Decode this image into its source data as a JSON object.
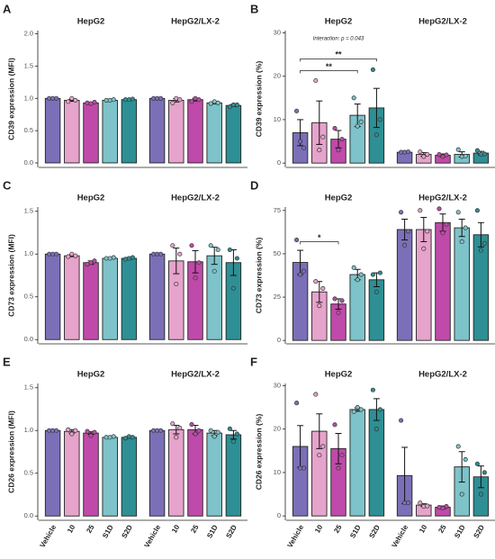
{
  "chart_data": [
    {
      "panel": "A",
      "type": "bar",
      "ylabel": "CD39 expression (MFI)",
      "ylim": [
        -0.07,
        2.05
      ],
      "yticks": [
        {
          "value": 0,
          "label": "0.0"
        },
        {
          "value": 0.5,
          "label": "0.5"
        },
        {
          "value": 1,
          "label": "1.0"
        },
        {
          "value": 1.5,
          "label": "1.5"
        },
        {
          "value": 2,
          "label": "2.0"
        }
      ],
      "colors": [
        "#7b70b8",
        "#e6a3cb",
        "#c04aa9",
        "#7dc3c9",
        "#2e8f94"
      ],
      "facets": [
        {
          "title": "HepG2",
          "values": [
            1.0,
            0.97,
            0.93,
            0.97,
            0.98
          ],
          "errors": [
            0.005,
            0.015,
            0.01,
            0.005,
            0.005
          ],
          "points": [
            [
              1.0,
              1.0,
              1.0
            ],
            [
              0.95,
              1.0,
              0.97
            ],
            [
              0.93,
              0.92,
              0.94
            ],
            [
              0.97,
              0.97,
              0.98
            ],
            [
              0.98,
              0.98,
              0.99
            ]
          ]
        },
        {
          "title": "HepG2/LX-2",
          "values": [
            1.0,
            0.97,
            0.98,
            0.93,
            0.89
          ],
          "errors": [
            0.005,
            0.025,
            0.02,
            0.015,
            0.015
          ],
          "points": [
            [
              1.0,
              1.0,
              1.0
            ],
            [
              0.93,
              1.0,
              0.98
            ],
            [
              0.95,
              1.0,
              0.98
            ],
            [
              0.92,
              0.95,
              0.93
            ],
            [
              0.87,
              0.9,
              0.9
            ]
          ]
        }
      ]
    },
    {
      "panel": "B",
      "type": "bar",
      "ylabel": "CD39 expression (%)",
      "ylim": [
        -1,
        30.5
      ],
      "yticks": [
        0,
        10,
        20,
        30
      ],
      "colors": [
        "#7b70b8",
        "#e6a3cb",
        "#c04aa9",
        "#7dc3c9",
        "#2e8f94"
      ],
      "note": "Interaction: p = 0.043",
      "annotations": [
        {
          "text": "**",
          "from": 0,
          "to": 4,
          "y": 24
        },
        {
          "text": "**",
          "from": 0,
          "to": 3,
          "y": 21.3
        }
      ],
      "facets": [
        {
          "title": "HepG2",
          "values": [
            7,
            9.3,
            5.5,
            11,
            12.7
          ],
          "errors": [
            3,
            5,
            2,
            2.6,
            4.5
          ],
          "points": [
            [
              12,
              5,
              3.5
            ],
            [
              19,
              3,
              6
            ],
            [
              8,
              3,
              5.5
            ],
            [
              15,
              8.5,
              9.5
            ],
            [
              21.5,
              6.5,
              10
            ]
          ]
        },
        {
          "title": "HepG2/LX-2",
          "values": [
            2.5,
            2,
            1.8,
            2,
            2.3
          ],
          "errors": [
            0.2,
            0.4,
            0.3,
            0.6,
            0.4
          ],
          "points": [
            [
              2.5,
              2.5,
              2.6
            ],
            [
              2.6,
              1.5,
              2
            ],
            [
              2,
              1.5,
              1.9
            ],
            [
              3.1,
              1.5,
              1.6
            ],
            [
              2.9,
              2,
              2.1
            ]
          ]
        }
      ]
    },
    {
      "panel": "C",
      "type": "bar",
      "ylabel": "CD73 expression (MFI)",
      "ylim": [
        -0.05,
        1.55
      ],
      "yticks": [
        {
          "value": 0,
          "label": "0.0"
        },
        {
          "value": 0.5,
          "label": "0.5"
        },
        {
          "value": 1,
          "label": "1.0"
        },
        {
          "value": 1.5,
          "label": "1.5"
        }
      ],
      "colors": [
        "#7b70b8",
        "#e6a3cb",
        "#c04aa9",
        "#7dc3c9",
        "#2e8f94"
      ],
      "facets": [
        {
          "title": "HepG2",
          "values": [
            1.0,
            0.98,
            0.9,
            0.95,
            0.95
          ],
          "errors": [
            0.005,
            0.01,
            0.02,
            0.005,
            0.01
          ],
          "points": [
            [
              1,
              1,
              1
            ],
            [
              0.97,
              1,
              0.98
            ],
            [
              0.88,
              0.9,
              0.92
            ],
            [
              0.95,
              0.95,
              0.96
            ],
            [
              0.94,
              0.95,
              0.96
            ]
          ]
        },
        {
          "title": "HepG2/LX-2",
          "values": [
            1.0,
            0.92,
            0.91,
            0.98,
            0.9
          ],
          "errors": [
            0.005,
            0.15,
            0.13,
            0.1,
            0.15
          ],
          "points": [
            [
              1,
              1,
              1
            ],
            [
              1.1,
              0.65,
              1.0
            ],
            [
              1.1,
              0.72,
              0.9
            ],
            [
              1.1,
              0.8,
              1.05
            ],
            [
              1.05,
              0.6,
              0.95
            ]
          ]
        }
      ]
    },
    {
      "panel": "D",
      "type": "bar",
      "ylabel": "CD73 expression (%)",
      "ylim": [
        -2,
        77
      ],
      "yticks": [
        0,
        25,
        50,
        75
      ],
      "colors": [
        "#7b70b8",
        "#e6a3cb",
        "#c04aa9",
        "#7dc3c9",
        "#2e8f94"
      ],
      "annotations": [
        {
          "text": "*",
          "from": 0,
          "to": 2,
          "y": 57
        }
      ],
      "facets": [
        {
          "title": "HepG2",
          "values": [
            45,
            28,
            21,
            38,
            35
          ],
          "errors": [
            7,
            6,
            3,
            3,
            4
          ],
          "points": [
            [
              58,
              38,
              40
            ],
            [
              34,
              20,
              30
            ],
            [
              24,
              16,
              23
            ],
            [
              42,
              35,
              38
            ],
            [
              38,
              28,
              39
            ]
          ]
        },
        {
          "title": "HepG2/LX-2",
          "values": [
            64,
            64,
            68,
            65,
            61
          ],
          "errors": [
            6,
            7,
            5,
            5,
            7
          ],
          "points": [
            [
              74,
              55,
              63
            ],
            [
              75,
              53,
              63
            ],
            [
              76,
              62,
              67
            ],
            [
              74,
              57,
              65
            ],
            [
              75,
              52,
              56
            ]
          ]
        }
      ]
    },
    {
      "panel": "E",
      "type": "bar",
      "ylabel": "CD26 expression (MFI)",
      "ylim": [
        -0.05,
        1.55
      ],
      "yticks": [
        {
          "value": 0,
          "label": "0.0"
        },
        {
          "value": 0.5,
          "label": "0.5"
        },
        {
          "value": 1,
          "label": "1.0"
        },
        {
          "value": 1.5,
          "label": "1.5"
        }
      ],
      "colors": [
        "#7b70b8",
        "#e6a3cb",
        "#c04aa9",
        "#7dc3c9",
        "#2e8f94"
      ],
      "categories": [
        "Vehicle",
        "10",
        "25",
        "S1D",
        "S2D"
      ],
      "facets": [
        {
          "title": "HepG2",
          "values": [
            1.0,
            0.99,
            0.97,
            0.92,
            0.92
          ],
          "errors": [
            0.005,
            0.02,
            0.015,
            0.005,
            0.01
          ],
          "points": [
            [
              1,
              1,
              1
            ],
            [
              1.01,
              0.96,
              1
            ],
            [
              0.99,
              0.94,
              0.98
            ],
            [
              0.92,
              0.92,
              0.93
            ],
            [
              0.91,
              0.93,
              0.92
            ]
          ]
        },
        {
          "title": "HepG2/LX-2",
          "values": [
            1.0,
            1.01,
            1.01,
            0.97,
            0.95
          ],
          "errors": [
            0.005,
            0.05,
            0.05,
            0.03,
            0.05
          ],
          "points": [
            [
              1,
              1,
              1
            ],
            [
              1.08,
              0.92,
              1.03
            ],
            [
              1.07,
              0.96,
              1.0
            ],
            [
              1.0,
              0.93,
              0.98
            ],
            [
              1.02,
              0.87,
              0.96
            ]
          ]
        }
      ]
    },
    {
      "panel": "F",
      "type": "bar",
      "ylabel": "CD26 expression (%)",
      "ylim": [
        -1,
        30.5
      ],
      "yticks": [
        0,
        10,
        20,
        30
      ],
      "colors": [
        "#7b70b8",
        "#e6a3cb",
        "#c04aa9",
        "#7dc3c9",
        "#2e8f94"
      ],
      "categories": [
        "Vehicle",
        "10",
        "25",
        "S1D",
        "S2D"
      ],
      "facets": [
        {
          "title": "HepG2",
          "values": [
            16,
            19.5,
            15.5,
            24.5,
            24.5
          ],
          "errors": [
            4.8,
            4,
            3.5,
            0.4,
            2.5
          ],
          "points": [
            [
              26,
              11,
              11
            ],
            [
              28,
              14,
              16
            ],
            [
              21,
              11,
              14
            ],
            [
              24,
              25,
              24.5
            ],
            [
              29,
              20,
              24.5
            ]
          ]
        },
        {
          "title": "HepG2/LX-2",
          "values": [
            9.3,
            2.5,
            2,
            11.3,
            9
          ],
          "errors": [
            6.5,
            0.3,
            0.3,
            3.5,
            2.5
          ],
          "points": [
            [
              22,
              3,
              3
            ],
            [
              3,
              2.2,
              2.3
            ],
            [
              2,
              1.8,
              2.2
            ],
            [
              16,
              5,
              13
            ],
            [
              12,
              5,
              10
            ]
          ]
        }
      ]
    }
  ]
}
